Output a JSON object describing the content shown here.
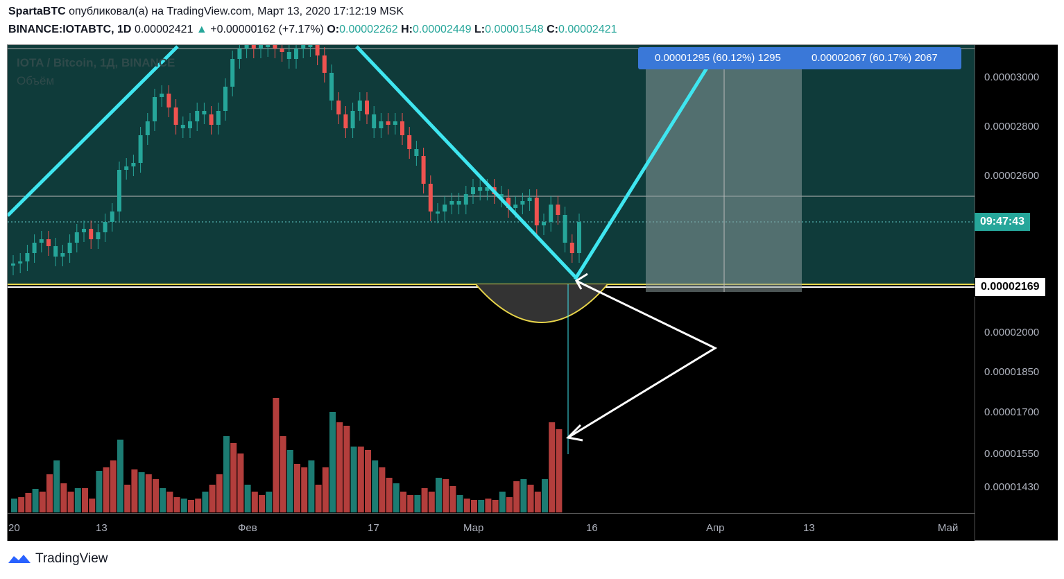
{
  "header": {
    "author": "SpartaBTC",
    "published_text": "опубликовал(а) на TradingView.com, Март 13, 2020 17:12:19 MSK",
    "symbol": "BINANCE:IOTABTC, 1D",
    "price": "0.00002421",
    "change": "+0.00000162 (+7.17%)",
    "o_label": "O:",
    "o_value": "0.00002262",
    "h_label": "H:",
    "h_value": "0.00002449",
    "l_label": "L:",
    "l_value": "0.00001548",
    "c_label": "C:",
    "c_value": "0.00002421"
  },
  "legend": {
    "title": "IOTA / Bitcoin, 1Д, BINANCE",
    "volume": "Объём"
  },
  "measure": {
    "left": "0.00001295 (60.12%) 1295",
    "right": "0.00002067 (60.17%) 2067"
  },
  "price_axis": {
    "labels": [
      "0.00003000",
      "0.00002800",
      "0.00002600",
      "0.00002000",
      "0.00001850",
      "0.00001700",
      "0.00001550",
      "0.00001430"
    ],
    "countdown": "09:47:43",
    "level": "0.00002169"
  },
  "time_axis": [
    "20",
    "13",
    "Фев",
    "17",
    "Мар",
    "16",
    "Апр",
    "13",
    "Май"
  ],
  "brand": "TradingView",
  "colors": {
    "up": "#26a69a",
    "down": "#ef5350",
    "trend": "#3fe6f0",
    "panel": "#0f3b3a"
  }
}
